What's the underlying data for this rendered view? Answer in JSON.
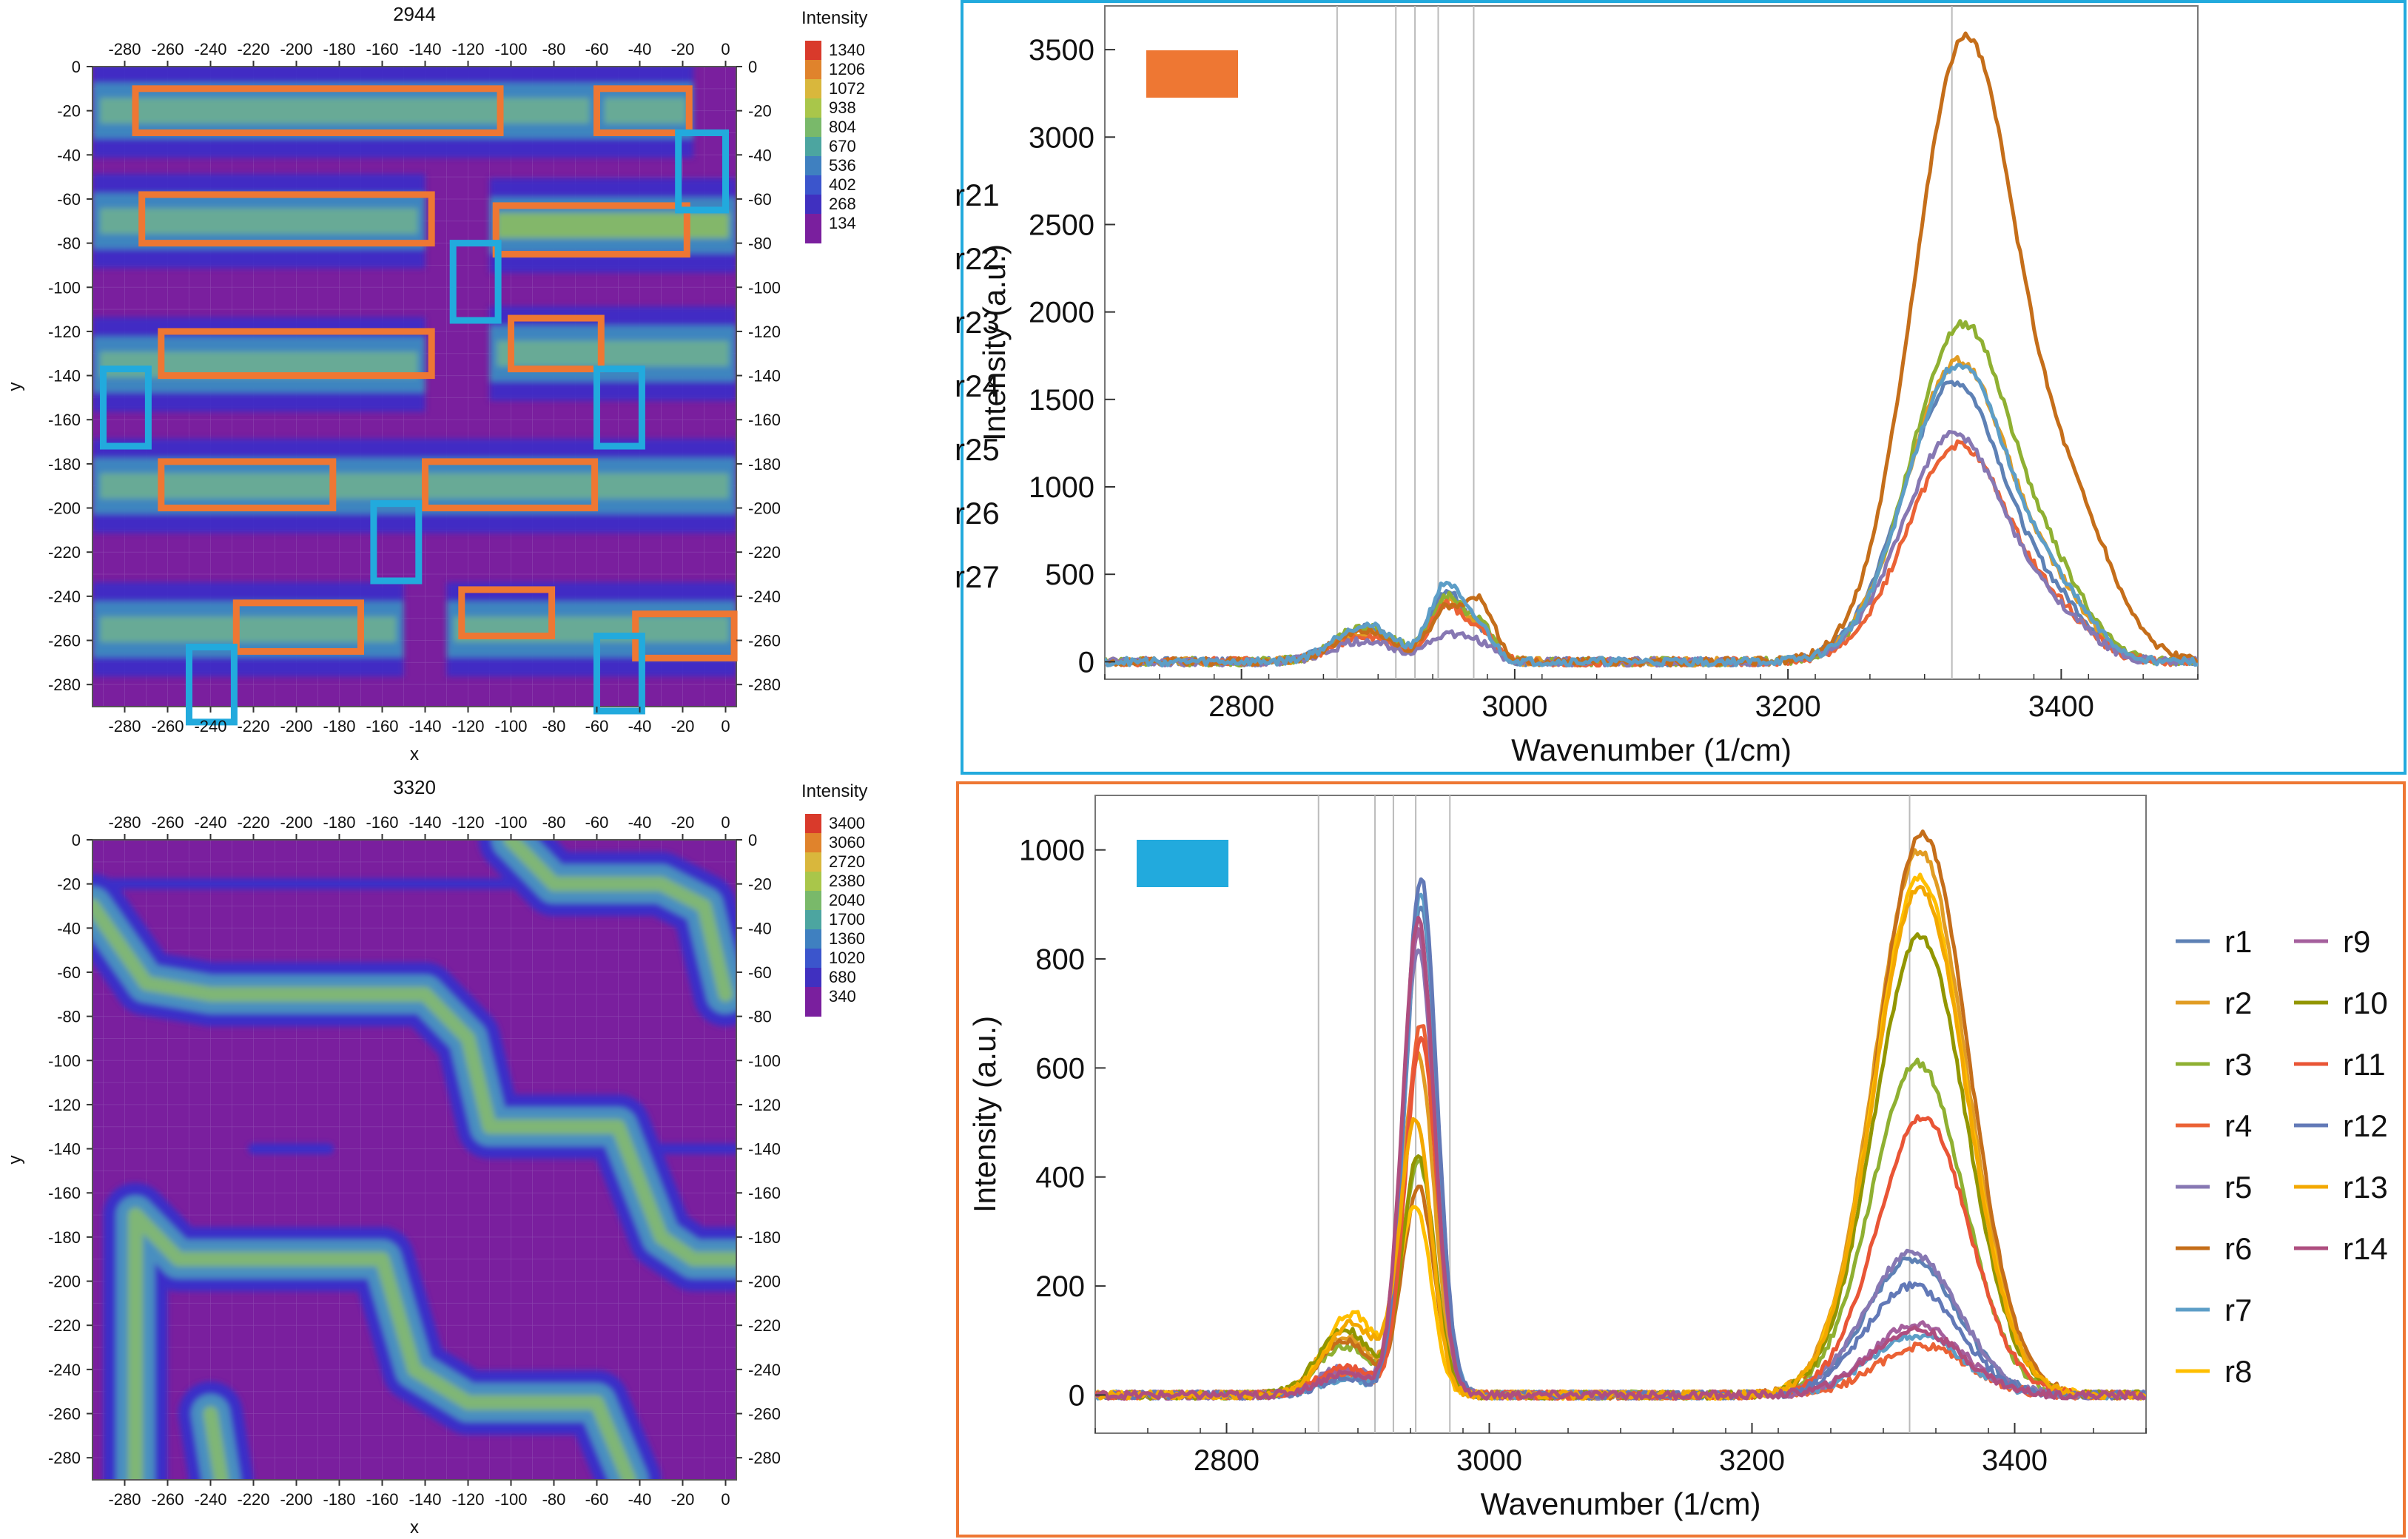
{
  "colors": {
    "orange_box": "#EE7733",
    "cyan_box": "#22AADD",
    "bg_purple": "#7a1f9e"
  },
  "chart_data": [
    {
      "id": "map_2944",
      "type": "heatmap",
      "title": "2944",
      "xlabel": "x",
      "ylabel": "y",
      "legend_title": "Intensity",
      "legend_values": [
        1340,
        1206,
        1072,
        938,
        804,
        670,
        536,
        402,
        268,
        134
      ],
      "xlim": [
        -295,
        5
      ],
      "ylim": [
        -290,
        0
      ],
      "x_ticks": [
        -280,
        -260,
        -240,
        -220,
        -200,
        -180,
        -160,
        -140,
        -120,
        -100,
        -80,
        -60,
        -40,
        -20,
        0
      ],
      "y_ticks": [
        0,
        -20,
        -40,
        -60,
        -80,
        -100,
        -120,
        -140,
        -160,
        -180,
        -200,
        -220,
        -240,
        -260,
        -280
      ],
      "bands": [
        {
          "y": -20,
          "x0": -295,
          "x1": -60,
          "strength": 0.55
        },
        {
          "y": -20,
          "x0": -60,
          "x1": -15,
          "strength": 0.45
        },
        {
          "y": -70,
          "x0": -295,
          "x1": -140,
          "strength": 0.55
        },
        {
          "y": -72,
          "x0": -110,
          "x1": 5,
          "strength": 0.85
        },
        {
          "y": -135,
          "x0": -295,
          "x1": -140,
          "strength": 0.7
        },
        {
          "y": -130,
          "x0": -110,
          "x1": 5,
          "strength": 0.6
        },
        {
          "y": -190,
          "x0": -295,
          "x1": 5,
          "strength": 0.6
        },
        {
          "y": -255,
          "x0": -295,
          "x1": -150,
          "strength": 0.55
        },
        {
          "y": -255,
          "x0": -130,
          "x1": 5,
          "strength": 0.5
        }
      ],
      "orange_boxes": [
        [
          -275,
          -30,
          -105,
          -10
        ],
        [
          -60,
          -30,
          -17,
          -10
        ],
        [
          -272,
          -80,
          -137,
          -58
        ],
        [
          -107,
          -85,
          -18,
          -63
        ],
        [
          -263,
          -140,
          -137,
          -120
        ],
        [
          -100,
          -137,
          -58,
          -114
        ],
        [
          -263,
          -200,
          -183,
          -179
        ],
        [
          -140,
          -200,
          -61,
          -179
        ],
        [
          -228,
          -265,
          -170,
          -243
        ],
        [
          -123,
          -258,
          -81,
          -237
        ],
        [
          -42,
          -268,
          4,
          -248
        ]
      ],
      "cyan_boxes": [
        [
          -22,
          -65,
          0,
          -30
        ],
        [
          -127,
          -115,
          -106,
          -80
        ],
        [
          -290,
          -172,
          -269,
          -137
        ],
        [
          -60,
          -172,
          -39,
          -137
        ],
        [
          -164,
          -233,
          -143,
          -198
        ],
        [
          -250,
          -297,
          -229,
          -263
        ],
        [
          -60,
          -292,
          -39,
          -258
        ]
      ]
    },
    {
      "id": "map_3320",
      "type": "heatmap",
      "title": "3320",
      "xlabel": "x",
      "ylabel": "y",
      "legend_title": "Intensity",
      "legend_values": [
        3400,
        3060,
        2720,
        2380,
        2040,
        1700,
        1360,
        1020,
        680,
        340
      ],
      "xlim": [
        -295,
        5
      ],
      "ylim": [
        -290,
        0
      ],
      "x_ticks": [
        -280,
        -260,
        -240,
        -220,
        -200,
        -180,
        -160,
        -140,
        -120,
        -100,
        -80,
        -60,
        -40,
        -20,
        0
      ],
      "y_ticks": [
        0,
        -20,
        -40,
        -60,
        -80,
        -100,
        -120,
        -140,
        -160,
        -180,
        -200,
        -220,
        -240,
        -260,
        -280
      ],
      "paths": [
        [
          [
            -275,
            -290
          ],
          [
            -275,
            -170
          ],
          [
            -255,
            -190
          ],
          [
            -160,
            -190
          ],
          [
            -145,
            -240
          ],
          [
            -120,
            -255
          ],
          [
            -60,
            -255
          ],
          [
            -45,
            -290
          ]
        ],
        [
          [
            -295,
            -30
          ],
          [
            -270,
            -65
          ],
          [
            -240,
            -70
          ],
          [
            -140,
            -70
          ],
          [
            -120,
            -90
          ],
          [
            -110,
            -130
          ],
          [
            -50,
            -130
          ],
          [
            -30,
            -180
          ],
          [
            -15,
            -190
          ],
          [
            5,
            -190
          ]
        ],
        [
          [
            -100,
            0
          ],
          [
            -80,
            -20
          ],
          [
            -30,
            -20
          ],
          [
            -10,
            -30
          ],
          [
            0,
            -70
          ]
        ],
        [
          [
            -240,
            -260
          ],
          [
            -235,
            -290
          ]
        ]
      ],
      "faint_lines": [
        [
          [
            -295,
            -20
          ],
          [
            -100,
            -20
          ]
        ],
        [
          [
            -220,
            -140
          ],
          [
            -185,
            -140
          ]
        ],
        [
          [
            -40,
            -140
          ],
          [
            5,
            -140
          ]
        ]
      ]
    },
    {
      "id": "spectrum_top",
      "type": "line",
      "xlabel": "Wavenumber (1/cm)",
      "ylabel": "Intensity (a.u.)",
      "xlim": [
        2700,
        3500
      ],
      "ylim": [
        -100,
        3750
      ],
      "x_ticks": [
        2800,
        3000,
        3200,
        3400
      ],
      "y_ticks": [
        0,
        500,
        1000,
        1500,
        2000,
        2500,
        3000,
        3500
      ],
      "vlines": [
        2870,
        2913,
        2927,
        2944,
        2970,
        3320
      ],
      "legend_swatch": "#EE7733",
      "series": [
        {
          "name": "r21",
          "color": "#5E81B5",
          "peaks": [
            [
              2890,
              190,
              22
            ],
            [
              2950,
              400,
              12
            ],
            [
              2975,
              160,
              10
            ],
            [
              3322,
              1600,
              38
            ],
            [
              3400,
              220,
              25
            ]
          ]
        },
        {
          "name": "r22",
          "color": "#E19C24",
          "peaks": [
            [
              2890,
              170,
              22
            ],
            [
              2950,
              340,
              12
            ],
            [
              2975,
              180,
              10
            ],
            [
              3325,
              1720,
              38
            ],
            [
              3400,
              250,
              25
            ]
          ]
        },
        {
          "name": "r23",
          "color": "#8FB032",
          "peaks": [
            [
              2890,
              200,
              22
            ],
            [
              2950,
              360,
              12
            ],
            [
              2975,
              200,
              10
            ],
            [
              3328,
              1930,
              38
            ],
            [
              3400,
              280,
              25
            ]
          ]
        },
        {
          "name": "r24",
          "color": "#EB6235",
          "peaks": [
            [
              2890,
              150,
              22
            ],
            [
              2950,
              320,
              12
            ],
            [
              2975,
              160,
              10
            ],
            [
              3325,
              1240,
              38
            ],
            [
              3400,
              180,
              25
            ]
          ]
        },
        {
          "name": "r25",
          "color": "#8778B3",
          "peaks": [
            [
              2890,
              120,
              22
            ],
            [
              2950,
              150,
              14
            ],
            [
              2975,
              90,
              10
            ],
            [
              3322,
              1300,
              38
            ],
            [
              3400,
              180,
              25
            ]
          ]
        },
        {
          "name": "r26",
          "color": "#C56E1A",
          "peaks": [
            [
              2890,
              180,
              22
            ],
            [
              2950,
              300,
              12
            ],
            [
              2975,
              330,
              10
            ],
            [
              3330,
              3560,
              38
            ],
            [
              3410,
              700,
              30
            ]
          ]
        },
        {
          "name": "r27",
          "color": "#5D9EC7",
          "peaks": [
            [
              2890,
              210,
              22
            ],
            [
              2950,
              440,
              12
            ],
            [
              2975,
              170,
              10
            ],
            [
              3325,
              1700,
              38
            ],
            [
              3400,
              260,
              25
            ]
          ]
        }
      ]
    },
    {
      "id": "spectrum_bottom",
      "type": "line",
      "xlabel": "Wavenumber (1/cm)",
      "ylabel": "Intensity (a.u.)",
      "xlim": [
        2700,
        3500
      ],
      "ylim": [
        -70,
        1100
      ],
      "x_ticks": [
        2800,
        3000,
        3200,
        3400
      ],
      "y_ticks": [
        0,
        200,
        400,
        600,
        800,
        1000
      ],
      "vlines": [
        2870,
        2913,
        2927,
        2944,
        2970,
        3320
      ],
      "legend_swatch": "#22AADD",
      "series": [
        {
          "name": "r1",
          "color": "#5E81B5",
          "peaks": [
            [
              2890,
              40,
              20
            ],
            [
              2948,
              900,
              12
            ],
            [
              3322,
              250,
              35
            ]
          ]
        },
        {
          "name": "r2",
          "color": "#E19C24",
          "peaks": [
            [
              2890,
              110,
              20
            ],
            [
              2946,
              620,
              12
            ],
            [
              3328,
              1000,
              35
            ]
          ]
        },
        {
          "name": "r3",
          "color": "#8FB032",
          "peaks": [
            [
              2890,
              90,
              20
            ],
            [
              2946,
              430,
              12
            ],
            [
              3326,
              610,
              35
            ]
          ]
        },
        {
          "name": "r4",
          "color": "#EB6235",
          "peaks": [
            [
              2890,
              40,
              20
            ],
            [
              2948,
              680,
              12
            ],
            [
              3330,
              90,
              35
            ]
          ]
        },
        {
          "name": "r5",
          "color": "#8778B3",
          "peaks": [
            [
              2890,
              50,
              20
            ],
            [
              2946,
              820,
              12
            ],
            [
              3322,
              260,
              35
            ]
          ]
        },
        {
          "name": "r6",
          "color": "#C56E1A",
          "peaks": [
            [
              2890,
              100,
              20
            ],
            [
              2946,
              380,
              12
            ],
            [
              3330,
              1030,
              35
            ]
          ]
        },
        {
          "name": "r7",
          "color": "#5D9EC7",
          "peaks": [
            [
              2890,
              30,
              20
            ],
            [
              2948,
              920,
              12
            ],
            [
              3325,
              110,
              35
            ]
          ]
        },
        {
          "name": "r8",
          "color": "#FFBF00",
          "peaks": [
            [
              2895,
              150,
              20
            ],
            [
              2944,
              340,
              12
            ],
            [
              3328,
              950,
              35
            ]
          ]
        },
        {
          "name": "r9",
          "color": "#A5609D",
          "peaks": [
            [
              2890,
              45,
              20
            ],
            [
              2946,
              850,
              12
            ],
            [
              3325,
              130,
              35
            ]
          ]
        },
        {
          "name": "r10",
          "color": "#929600",
          "peaks": [
            [
              2890,
              120,
              20
            ],
            [
              2946,
              440,
              12
            ],
            [
              3328,
              840,
              35
            ]
          ]
        },
        {
          "name": "r11",
          "color": "#E95536",
          "peaks": [
            [
              2890,
              50,
              20
            ],
            [
              2948,
              650,
              12
            ],
            [
              3330,
              510,
              35
            ]
          ]
        },
        {
          "name": "r12",
          "color": "#6279B7",
          "peaks": [
            [
              2890,
              30,
              20
            ],
            [
              2948,
              950,
              12
            ],
            [
              3322,
              200,
              35
            ]
          ]
        },
        {
          "name": "r13",
          "color": "#F3A800",
          "peaks": [
            [
              2895,
              130,
              20
            ],
            [
              2944,
              500,
              12
            ],
            [
              3328,
              930,
              35
            ]
          ]
        },
        {
          "name": "r14",
          "color": "#AE4E7F",
          "peaks": [
            [
              2890,
              40,
              20
            ],
            [
              2946,
              870,
              12
            ],
            [
              3325,
              120,
              35
            ]
          ]
        }
      ]
    }
  ]
}
